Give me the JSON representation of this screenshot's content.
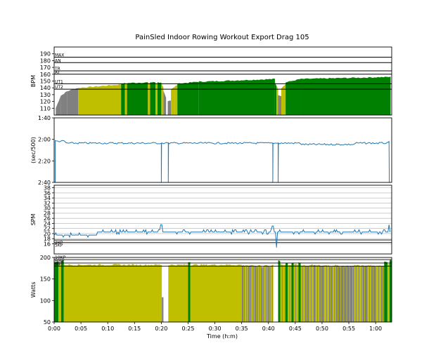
{
  "chart_data": {
    "type": "area",
    "title": "PainSled Indoor Rowing Workout Export Drag 105",
    "xlabel": "Time (h:m)",
    "x_range_min": [
      0,
      63
    ],
    "x_ticks": [
      "0:00",
      "0:05",
      "0:10",
      "0:15",
      "0:20",
      "0:25",
      "0:30",
      "0:35",
      "0:40",
      "0:45",
      "0:50",
      "0:55",
      "1:00"
    ],
    "colors": {
      "grey": "#808080",
      "yellow": "#bfbf00",
      "green": "#008000",
      "line": "#1f77b4"
    },
    "panels": [
      {
        "id": "hr",
        "ylabel": "BPM",
        "ylim": [
          100,
          200
        ],
        "yticks": [
          110,
          120,
          130,
          140,
          150,
          160,
          170,
          180,
          190
        ],
        "zones": [
          {
            "label": "MAX",
            "value": 185
          },
          {
            "label": "AN",
            "value": 177
          },
          {
            "label": "TR",
            "value": 165
          },
          {
            "label": "AT",
            "value": 160
          },
          {
            "label": "UT1",
            "value": 146
          },
          {
            "label": "UT2",
            "value": 138
          }
        ],
        "series": [
          {
            "kind": "ramp",
            "t0": 0.3,
            "t1": 1.2,
            "v0": 110,
            "v1": 128,
            "color": "grey"
          },
          {
            "kind": "ramp",
            "t0": 1.2,
            "t1": 2.4,
            "v0": 128,
            "v1": 135,
            "color": "grey"
          },
          {
            "kind": "ramp",
            "t0": 2.4,
            "t1": 4.5,
            "v0": 135,
            "v1": 140,
            "color": "grey"
          },
          {
            "kind": "ramp",
            "t0": 4.5,
            "t1": 12.5,
            "v0": 140,
            "v1": 145,
            "color": "yellow"
          },
          {
            "kind": "ramp",
            "t0": 12.5,
            "t1": 13.2,
            "v0": 146,
            "v1": 147,
            "color": "green"
          },
          {
            "kind": "ramp",
            "t0": 13.2,
            "t1": 13.6,
            "v0": 146,
            "v1": 146,
            "color": "yellow"
          },
          {
            "kind": "ramp",
            "t0": 13.6,
            "t1": 17.5,
            "v0": 147,
            "v1": 148,
            "color": "green"
          },
          {
            "kind": "ramp",
            "t0": 17.5,
            "t1": 17.9,
            "v0": 147,
            "v1": 147,
            "color": "yellow"
          },
          {
            "kind": "ramp",
            "t0": 17.9,
            "t1": 18.9,
            "v0": 148,
            "v1": 148,
            "color": "green"
          },
          {
            "kind": "ramp",
            "t0": 18.9,
            "t1": 19.3,
            "v0": 147,
            "v1": 147,
            "color": "yellow"
          },
          {
            "kind": "ramp",
            "t0": 19.3,
            "t1": 20.0,
            "v0": 148,
            "v1": 148,
            "color": "green"
          },
          {
            "kind": "ramp",
            "t0": 20.0,
            "t1": 20.4,
            "v0": 146,
            "v1": 140,
            "color": "yellow"
          },
          {
            "kind": "ramp",
            "t0": 20.4,
            "t1": 20.9,
            "v0": 135,
            "v1": 125,
            "color": "grey"
          },
          {
            "kind": "ramp",
            "t0": 21.2,
            "t1": 21.8,
            "v0": 120,
            "v1": 122,
            "color": "grey"
          },
          {
            "kind": "ramp",
            "t0": 21.8,
            "t1": 22.5,
            "v0": 138,
            "v1": 142,
            "color": "yellow"
          },
          {
            "kind": "ramp",
            "t0": 22.5,
            "t1": 23.0,
            "v0": 142,
            "v1": 144,
            "color": "yellow"
          },
          {
            "kind": "ramp",
            "t0": 23.0,
            "t1": 27.0,
            "v0": 146,
            "v1": 149,
            "color": "green"
          },
          {
            "kind": "ramp",
            "t0": 27.0,
            "t1": 41.2,
            "v0": 149,
            "v1": 153,
            "color": "green"
          },
          {
            "kind": "ramp",
            "t0": 41.2,
            "t1": 41.5,
            "v0": 148,
            "v1": 143,
            "color": "green"
          },
          {
            "kind": "ramp",
            "t0": 41.5,
            "t1": 41.8,
            "v0": 143,
            "v1": 138,
            "color": "yellow"
          },
          {
            "kind": "ramp",
            "t0": 41.8,
            "t1": 42.4,
            "v0": 130,
            "v1": 128,
            "color": "grey"
          },
          {
            "kind": "ramp",
            "t0": 42.4,
            "t1": 43.2,
            "v0": 140,
            "v1": 145,
            "color": "yellow"
          },
          {
            "kind": "ramp",
            "t0": 43.2,
            "t1": 46.0,
            "v0": 148,
            "v1": 153,
            "color": "green"
          },
          {
            "kind": "ramp",
            "t0": 46.0,
            "t1": 62.8,
            "v0": 153,
            "v1": 156,
            "color": "green"
          }
        ]
      },
      {
        "id": "pace",
        "ylabel": "(sec/500)",
        "ylim_sec": [
          100,
          160
        ],
        "yticks": [
          {
            "label": "1:40",
            "sec": 100
          },
          {
            "label": "2:00",
            "sec": 120
          },
          {
            "label": "2:20",
            "sec": 140
          },
          {
            "label": "2:40",
            "sec": 160
          }
        ],
        "baseline_sec": 123.5,
        "spikes_min": [
          20.0,
          21.3,
          40.8,
          41.8
        ],
        "ends_min": [
          0.2,
          62.5
        ]
      },
      {
        "id": "spm",
        "ylabel": "SPM",
        "ylim": [
          12,
          39
        ],
        "yticks": [
          16,
          18,
          20,
          22,
          24,
          26,
          28,
          30,
          32,
          34,
          36,
          38
        ],
        "zones": [
          {
            "label": "2KP",
            "value": 17.5
          },
          {
            "label": "5KP",
            "value": 16.5
          }
        ],
        "baseline": 20.6,
        "spikes": [
          {
            "t": 20.0,
            "v": 23.5
          },
          {
            "t": 40.8,
            "v": 23.0
          },
          {
            "t": 41.5,
            "v": 14.5
          },
          {
            "t": 62.5,
            "v": 23.5
          }
        ]
      },
      {
        "id": "watts",
        "ylabel": "Watts",
        "ylim": [
          50,
          200
        ],
        "yticks": [
          50,
          100,
          150,
          200
        ],
        "zones": [
          {
            "label": "10KP",
            "value": 195
          },
          {
            "label": "HMP",
            "value": 187
          },
          {
            "label": "MP",
            "value": 180
          }
        ],
        "segments": [
          {
            "t0": 0.0,
            "t1": 0.8,
            "v": 190,
            "color": "green"
          },
          {
            "t0": 0.8,
            "t1": 1.3,
            "v": 185,
            "color": "yellow"
          },
          {
            "t0": 1.3,
            "t1": 1.8,
            "v": 193,
            "color": "green"
          },
          {
            "t0": 1.8,
            "t1": 20.1,
            "v": 183,
            "color": "yellow"
          },
          {
            "t0": 20.1,
            "t1": 20.4,
            "v": 108,
            "color": "grey"
          },
          {
            "t0": 21.3,
            "t1": 25.0,
            "v": 183,
            "color": "yellow"
          },
          {
            "t0": 25.0,
            "t1": 25.4,
            "v": 190,
            "color": "green"
          },
          {
            "t0": 25.4,
            "t1": 35.0,
            "v": 183,
            "color": "yellow"
          },
          {
            "t0": 35.0,
            "t1": 35.6,
            "v": 181,
            "color": "grey"
          },
          {
            "t0": 35.6,
            "t1": 36.2,
            "v": 182,
            "color": "yellow"
          },
          {
            "t0": 36.2,
            "t1": 36.8,
            "v": 180,
            "color": "grey"
          },
          {
            "t0": 36.8,
            "t1": 37.4,
            "v": 182,
            "color": "yellow"
          },
          {
            "t0": 37.4,
            "t1": 38.0,
            "v": 179,
            "color": "grey"
          },
          {
            "t0": 38.0,
            "t1": 38.6,
            "v": 182,
            "color": "yellow"
          },
          {
            "t0": 38.6,
            "t1": 39.2,
            "v": 179,
            "color": "grey"
          },
          {
            "t0": 39.2,
            "t1": 39.8,
            "v": 182,
            "color": "yellow"
          },
          {
            "t0": 39.8,
            "t1": 40.4,
            "v": 180,
            "color": "grey"
          },
          {
            "t0": 40.4,
            "t1": 40.9,
            "v": 182,
            "color": "yellow"
          },
          {
            "t0": 41.8,
            "t1": 42.2,
            "v": 192,
            "color": "green"
          },
          {
            "t0": 42.2,
            "t1": 43.2,
            "v": 183,
            "color": "yellow"
          },
          {
            "t0": 43.2,
            "t1": 43.6,
            "v": 188,
            "color": "green"
          },
          {
            "t0": 43.6,
            "t1": 44.3,
            "v": 183,
            "color": "yellow"
          },
          {
            "t0": 44.3,
            "t1": 44.7,
            "v": 188,
            "color": "green"
          },
          {
            "t0": 44.7,
            "t1": 45.6,
            "v": 183,
            "color": "yellow"
          },
          {
            "t0": 45.6,
            "t1": 46.0,
            "v": 188,
            "color": "green"
          },
          {
            "t0": 46.0,
            "t1": 46.8,
            "v": 182,
            "color": "yellow"
          },
          {
            "t0": 46.8,
            "t1": 47.6,
            "v": 180,
            "color": "grey"
          },
          {
            "t0": 47.6,
            "t1": 48.4,
            "v": 183,
            "color": "yellow"
          },
          {
            "t0": 48.4,
            "t1": 48.8,
            "v": 181,
            "color": "grey"
          },
          {
            "t0": 48.8,
            "t1": 49.5,
            "v": 182,
            "color": "yellow"
          },
          {
            "t0": 49.5,
            "t1": 50.5,
            "v": 181,
            "color": "grey"
          },
          {
            "t0": 50.5,
            "t1": 51.3,
            "v": 182,
            "color": "yellow"
          },
          {
            "t0": 51.3,
            "t1": 52.0,
            "v": 180,
            "color": "grey"
          },
          {
            "t0": 52.0,
            "t1": 52.6,
            "v": 182,
            "color": "yellow"
          },
          {
            "t0": 52.6,
            "t1": 56.0,
            "v": 180,
            "color": "grey"
          },
          {
            "t0": 56.0,
            "t1": 57.6,
            "v": 182,
            "color": "yellow"
          },
          {
            "t0": 57.6,
            "t1": 58.5,
            "v": 180,
            "color": "grey"
          },
          {
            "t0": 58.5,
            "t1": 59.2,
            "v": 182,
            "color": "yellow"
          },
          {
            "t0": 59.2,
            "t1": 60.2,
            "v": 180,
            "color": "grey"
          },
          {
            "t0": 60.2,
            "t1": 61.0,
            "v": 181,
            "color": "yellow"
          },
          {
            "t0": 61.0,
            "t1": 61.6,
            "v": 180,
            "color": "grey"
          },
          {
            "t0": 61.6,
            "t1": 62.2,
            "v": 191,
            "color": "green"
          },
          {
            "t0": 62.2,
            "t1": 62.6,
            "v": 185,
            "color": "yellow"
          },
          {
            "t0": 62.6,
            "t1": 63.0,
            "v": 193,
            "color": "green"
          }
        ],
        "stripe_color_map": {
          "yellow": "grey",
          "grey": "yellow"
        }
      }
    ]
  }
}
